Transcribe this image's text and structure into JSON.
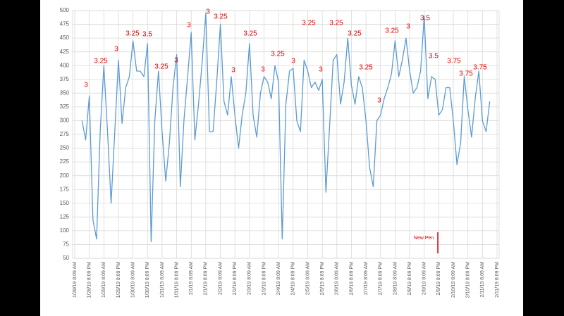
{
  "chart_data": {
    "type": "line",
    "categories": [
      "1/28/19 8:09 AM",
      null,
      null,
      null,
      "1/28/19 8:09 PM",
      null,
      null,
      null,
      "1/29/19 8:09 AM",
      null,
      null,
      null,
      "1/29/19 8:09 PM",
      null,
      null,
      null,
      "1/30/19 8:09 AM",
      null,
      null,
      null,
      "1/30/19 8:09 PM",
      null,
      null,
      null,
      "1/31/19 8:09 AM",
      null,
      null,
      null,
      "1/31/19 8:09 PM",
      null,
      null,
      null,
      "2/1/19 8:09 AM",
      null,
      null,
      null,
      "2/1/19 8:09 PM",
      null,
      null,
      null,
      "2/2/19 8:09 AM",
      null,
      null,
      null,
      "2/2/19 8:09 PM",
      null,
      null,
      null,
      "2/3/19 8:09 AM",
      null,
      null,
      null,
      "2/3/19 8:09 PM",
      null,
      null,
      null,
      "2/4/19 8:09 AM",
      null,
      null,
      null,
      "2/4/19 8:09 PM",
      null,
      null,
      null,
      "2/5/19 8:09 AM",
      null,
      null,
      null,
      "2/5/19 8:09 PM",
      null,
      null,
      null,
      "2/6/19 8:09 AM",
      null,
      null,
      null,
      "2/6/19 8:09 PM",
      null,
      null,
      null,
      "2/7/19 8:09 AM",
      null,
      null,
      null,
      "2/7/19 8:09 PM",
      null,
      null,
      null,
      "2/8/19 8:09 AM",
      null,
      null,
      null,
      "2/8/19 8:09 PM",
      null,
      null,
      null,
      "2/9/19 8:09 AM",
      null,
      null,
      null,
      "2/9/19 8:09 PM",
      null,
      null,
      null,
      "2/10/19 8:09 AM",
      null,
      null,
      null,
      "2/10/19 8:09 PM",
      null,
      null,
      null,
      "2/11/19 8:09 AM",
      null,
      null,
      null,
      "2/11/19 8:09 PM"
    ],
    "series": [
      {
        "color": "#5b9bd5",
        "values": [
          null,
          null,
          300,
          265,
          345,
          120,
          85,
          280,
          400,
          280,
          150,
          280,
          410,
          295,
          360,
          380,
          445,
          390,
          390,
          380,
          440,
          80,
          300,
          390,
          280,
          190,
          260,
          360,
          420,
          180,
          300,
          380,
          460,
          265,
          330,
          405,
          495,
          280,
          280,
          370,
          475,
          335,
          310,
          380,
          310,
          250,
          310,
          350,
          440,
          310,
          270,
          350,
          380,
          370,
          340,
          400,
          370,
          85,
          330,
          390,
          395,
          300,
          280,
          410,
          390,
          360,
          370,
          355,
          375,
          170,
          290,
          410,
          420,
          330,
          370,
          450,
          365,
          330,
          380,
          360,
          300,
          215,
          180,
          300,
          310,
          340,
          360,
          385,
          445,
          380,
          410,
          450,
          390,
          350,
          360,
          390,
          490,
          340,
          380,
          375,
          310,
          320,
          360,
          360,
          300,
          220,
          260,
          380,
          320,
          270,
          340,
          390,
          300,
          280,
          335,
          null,
          null
        ]
      }
    ],
    "ylim": [
      50,
      500
    ],
    "yticks": [
      50,
      75,
      100,
      125,
      150,
      175,
      200,
      225,
      250,
      275,
      300,
      325,
      350,
      375,
      400,
      425,
      450,
      475,
      500
    ],
    "grid": true,
    "annotations": [
      "3",
      "3.25",
      "3",
      "3.25",
      "3.5",
      "3.25",
      "3",
      "3",
      "3",
      "3.25",
      "3",
      "3.25",
      "3",
      "3.25",
      "3",
      "3.25",
      "3",
      "3.25",
      "3.25",
      "3.25",
      "3",
      "3.25",
      "3",
      "3.5",
      "3.5",
      "3.75",
      "3.75",
      "3.75",
      "New Pen"
    ],
    "annotation_color": "#e00000"
  }
}
